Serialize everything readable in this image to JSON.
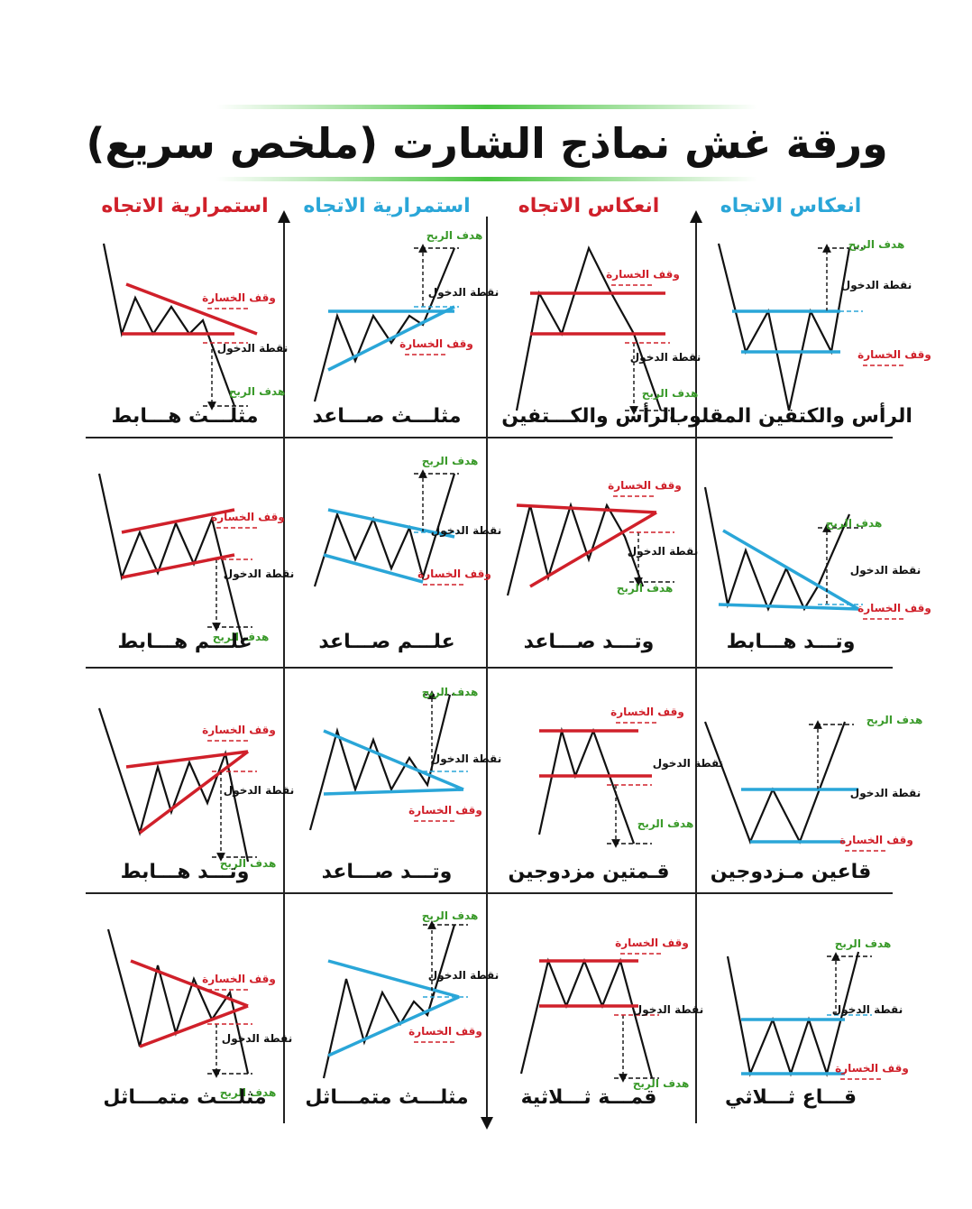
{
  "title": "ورقة غش نماذج الشارت (ملخص سريع)",
  "columns": [
    "انعكاس الاتجاه",
    "انعكاس الاتجاه",
    "استمرارية الاتجاه",
    "استمرارية الاتجاه"
  ],
  "rows": [
    [
      {
        "name": "الرأس والكتفين المقلوب",
        "labels": {
          "stop": "وقف الخسارة",
          "entry": "نقطة الدخول",
          "target": "هدف الربح"
        }
      },
      {
        "name": "الرأس والكـــتفين",
        "labels": {
          "stop": "وقف الخسارة",
          "entry": "نقطة الدخول",
          "target": "هدف الربح"
        }
      },
      {
        "name": "مثلـــث صـــاعد",
        "labels": {
          "stop": "وقف الخسارة",
          "entry": "نقطة الدخول",
          "target": "هدف الربح"
        }
      },
      {
        "name": "مثلـــث هـــابط",
        "labels": {
          "stop": "وقف الخسارة",
          "entry": "نقطة الدخول",
          "target": "هدف الربح"
        }
      }
    ],
    [
      {
        "name": "وتـــد هـــابط",
        "labels": {
          "stop": "وقف الخسارة",
          "entry": "نقطة الدخول",
          "target": "هدف الربح"
        }
      },
      {
        "name": "وتـــد صـــاعد",
        "labels": {
          "stop": "وقف الخسارة",
          "entry": "نقطة الدخول",
          "target": "هدف الربح"
        }
      },
      {
        "name": "علـــم صـــاعد",
        "labels": {
          "stop": "وقف الخسارة",
          "entry": "نقطة الدخول",
          "target": "هدف الربح"
        }
      },
      {
        "name": "علـــم هـــابط",
        "labels": {
          "stop": "وقف الخسارة",
          "entry": "نقطة الدخول",
          "target": "هدف الربح"
        }
      }
    ],
    [
      {
        "name": "قاعين مـزدوجين",
        "labels": {
          "stop": "وقف الخسارة",
          "entry": "نقطة الدخول",
          "target": "هدف الربح"
        }
      },
      {
        "name": "قـمتين مزدوجين",
        "labels": {
          "stop": "وقف الخسارة",
          "entry": "نقطة الدخول",
          "target": "هدف الربح"
        }
      },
      {
        "name": "وتـــد صـــاعد",
        "labels": {
          "stop": "وقف الخسارة",
          "entry": "نقطة الدخول",
          "target": "هدف الربح"
        }
      },
      {
        "name": "وتـــد هـــابط",
        "labels": {
          "stop": "وقف الخسارة",
          "entry": "نقطة الدخول",
          "target": "هدف الربح"
        }
      }
    ],
    [
      {
        "name": "قـــاع ثـــلاثي",
        "labels": {
          "stop": "وقف الخسارة",
          "entry": "نقطة الدخول",
          "target": "هدف الربح"
        }
      },
      {
        "name": "قمـــة ثـــلاثية",
        "labels": {
          "stop": "وقف الخسارة",
          "entry": "نقطة الدخول",
          "target": "هدف الربح"
        }
      },
      {
        "name": "مثلـــث متمـــاثل",
        "labels": {
          "stop": "وقف الخسارة",
          "entry": "نقطة الدخول",
          "target": "هدف الربح"
        }
      },
      {
        "name": "مثلـــث متمـــاثل",
        "labels": {
          "stop": "وقف الخسارة",
          "entry": "نقطة الدخول",
          "target": "هدف الربح"
        }
      }
    ]
  ]
}
